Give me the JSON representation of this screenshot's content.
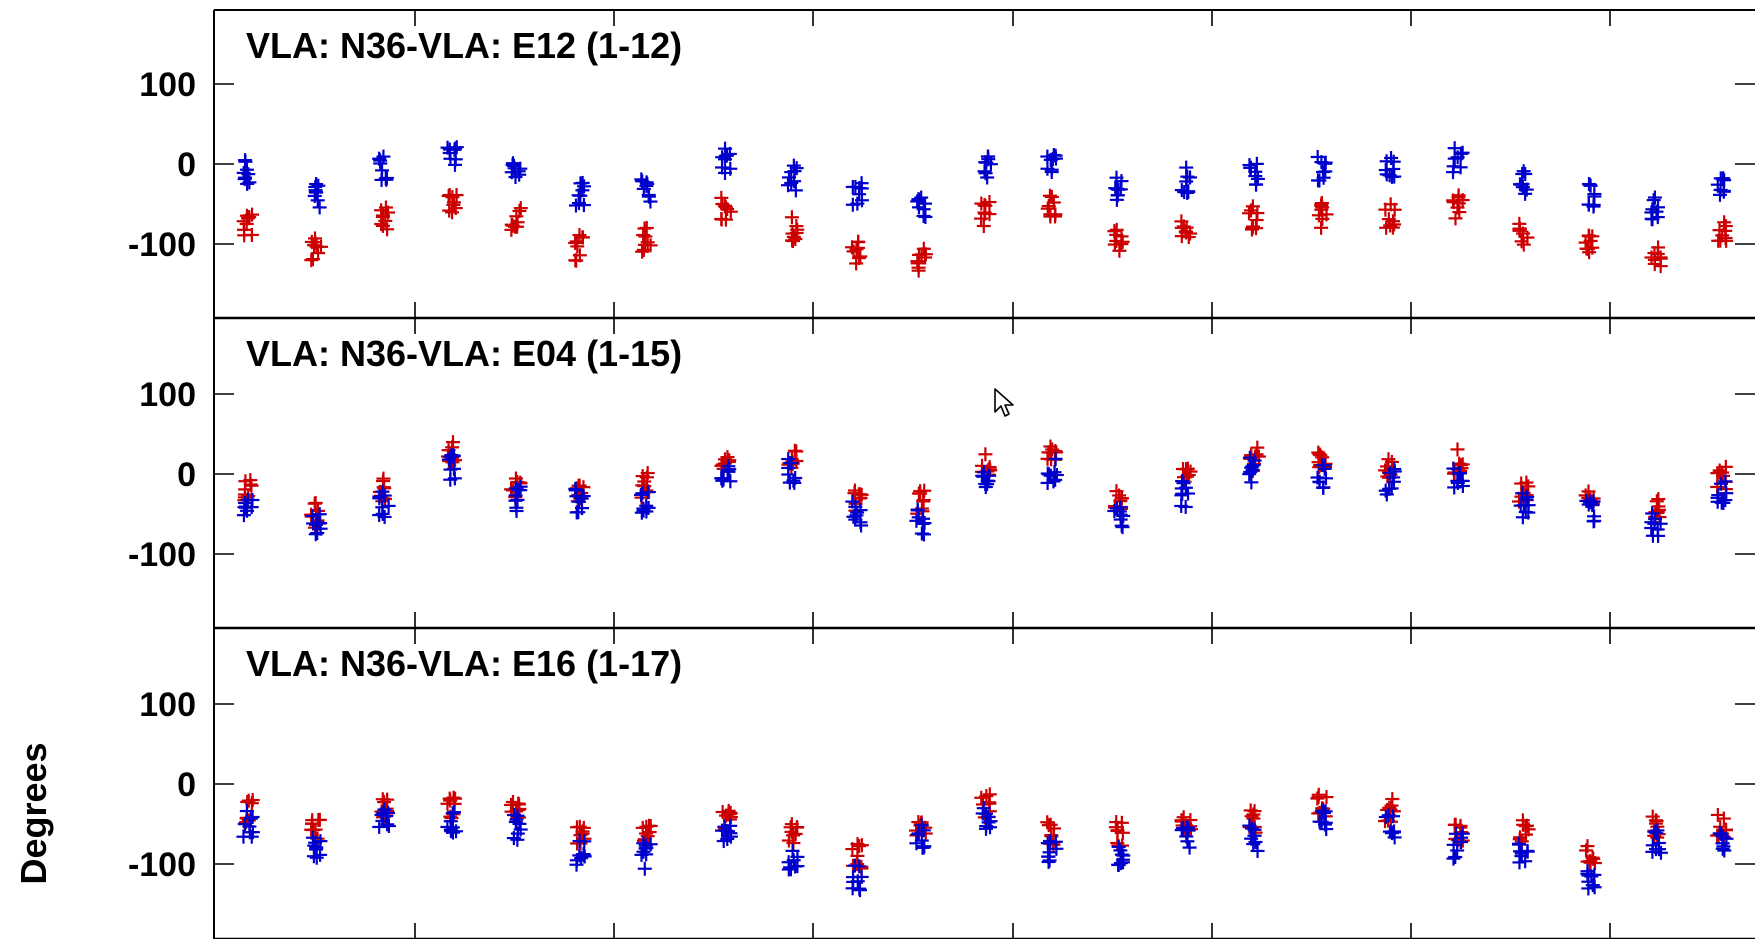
{
  "chart_data": [
    {
      "type": "scatter",
      "title": "VLA: N36-VLA: E12 (1-12)",
      "ylim": [
        -180,
        180
      ],
      "yticks": [
        100,
        0,
        -100
      ],
      "ytick_labels": [
        "100",
        "0",
        "-100"
      ],
      "x": [
        1,
        2,
        3,
        4,
        5,
        6,
        7,
        8,
        9,
        10,
        11,
        12,
        13,
        14,
        15,
        16,
        17,
        18,
        19,
        20,
        21,
        22,
        23,
        24
      ],
      "series": [
        {
          "color": "#cc0000",
          "values": [
            -75,
            -108,
            -68,
            -45,
            -68,
            -105,
            -95,
            -58,
            -82,
            -110,
            -118,
            -62,
            -50,
            -95,
            -85,
            -68,
            -65,
            -65,
            -55,
            -88,
            -100,
            -120,
            -88,
            -88
          ]
        },
        {
          "color": "#0000cc",
          "values": [
            -10,
            -40,
            -5,
            15,
            -5,
            -38,
            -32,
            3,
            -18,
            -40,
            -50,
            -3,
            5,
            -32,
            -20,
            -10,
            -5,
            -3,
            5,
            -25,
            -38,
            -58,
            -28,
            -28
          ]
        }
      ]
    },
    {
      "type": "scatter",
      "title": "VLA: N36-VLA: E04 (1-15)",
      "ylim": [
        -180,
        180
      ],
      "yticks": [
        100,
        0,
        -100
      ],
      "ytick_labels": [
        "100",
        "0",
        "-100"
      ],
      "x": [
        1,
        2,
        3,
        4,
        5,
        6,
        7,
        8,
        9,
        10,
        11,
        12,
        13,
        14,
        15,
        16,
        17,
        18,
        19,
        20,
        21,
        22,
        23,
        24
      ],
      "series": [
        {
          "color": "#cc0000",
          "values": [
            -22,
            -52,
            -20,
            25,
            -18,
            -20,
            -15,
            18,
            15,
            -30,
            -35,
            12,
            20,
            -35,
            -8,
            18,
            15,
            8,
            15,
            -22,
            -30,
            -45,
            -5,
            -5
          ]
        },
        {
          "color": "#0000cc",
          "values": [
            -40,
            -65,
            -38,
            8,
            -32,
            -32,
            -38,
            5,
            5,
            -50,
            -60,
            -5,
            5,
            -52,
            -25,
            5,
            -2,
            -10,
            -5,
            -38,
            -45,
            -62,
            -22,
            -22
          ]
        }
      ]
    },
    {
      "type": "scatter",
      "title": "VLA: N36-VLA: E16 (1-17)",
      "ylim": [
        -180,
        180
      ],
      "yticks": [
        100,
        0,
        -100
      ],
      "ytick_labels": [
        "100",
        "0",
        "-100"
      ],
      "ylabel": "Degrees",
      "x": [
        1,
        2,
        3,
        4,
        5,
        6,
        7,
        8,
        9,
        10,
        11,
        12,
        13,
        14,
        15,
        16,
        17,
        18,
        19,
        20,
        21,
        22,
        23,
        24
      ],
      "series": [
        {
          "color": "#cc0000",
          "values": [
            -35,
            -55,
            -28,
            -28,
            -38,
            -62,
            -68,
            -45,
            -65,
            -90,
            -48,
            -28,
            -60,
            -62,
            -48,
            -48,
            -25,
            -32,
            -55,
            -58,
            -88,
            -52,
            -52,
            -52
          ]
        },
        {
          "color": "#0000cc",
          "values": [
            -50,
            -80,
            -48,
            -50,
            -55,
            -85,
            -90,
            -68,
            -95,
            -118,
            -65,
            -42,
            -85,
            -85,
            -70,
            -68,
            -45,
            -55,
            -78,
            -82,
            -115,
            -72,
            -72,
            -72
          ]
        }
      ]
    }
  ],
  "xcol": [
    248,
    316,
    384,
    452,
    516,
    580,
    646,
    726,
    793,
    857,
    921,
    986,
    1052,
    1119,
    1186,
    1254,
    1322,
    1390,
    1458,
    1524,
    1590,
    1656,
    1722,
    1722
  ]
}
